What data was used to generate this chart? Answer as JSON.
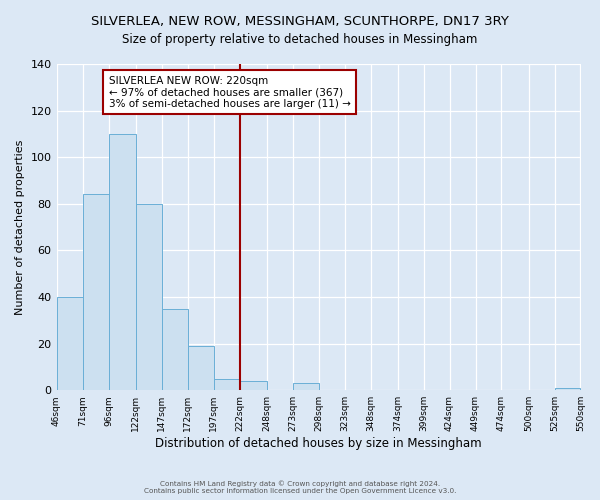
{
  "title": "SILVERLEA, NEW ROW, MESSINGHAM, SCUNTHORPE, DN17 3RY",
  "subtitle": "Size of property relative to detached houses in Messingham",
  "xlabel": "Distribution of detached houses by size in Messingham",
  "ylabel": "Number of detached properties",
  "bin_edges": [
    46,
    71,
    96,
    122,
    147,
    172,
    197,
    222,
    248,
    273,
    298,
    323,
    348,
    374,
    399,
    424,
    449,
    474,
    500,
    525,
    550
  ],
  "bin_labels": [
    "46sqm",
    "71sqm",
    "96sqm",
    "122sqm",
    "147sqm",
    "172sqm",
    "197sqm",
    "222sqm",
    "248sqm",
    "273sqm",
    "298sqm",
    "323sqm",
    "348sqm",
    "374sqm",
    "399sqm",
    "424sqm",
    "449sqm",
    "474sqm",
    "500sqm",
    "525sqm",
    "550sqm"
  ],
  "counts": [
    40,
    84,
    110,
    80,
    35,
    19,
    5,
    4,
    0,
    3,
    0,
    0,
    0,
    0,
    0,
    0,
    0,
    0,
    0,
    1
  ],
  "bar_facecolor": "#cce0f0",
  "bar_edgecolor": "#6aafd6",
  "vline_x": 222,
  "vline_color": "#9b0000",
  "annotation_title": "SILVERLEA NEW ROW: 220sqm",
  "annotation_line1": "← 97% of detached houses are smaller (367)",
  "annotation_line2": "3% of semi-detached houses are larger (11) →",
  "annotation_box_edgecolor": "#9b0000",
  "annotation_box_facecolor": "#ffffff",
  "ylim": [
    0,
    140
  ],
  "yticks": [
    0,
    20,
    40,
    60,
    80,
    100,
    120,
    140
  ],
  "background_color": "#dce8f5",
  "grid_color": "#ffffff",
  "footer1": "Contains HM Land Registry data © Crown copyright and database right 2024.",
  "footer2": "Contains public sector information licensed under the Open Government Licence v3.0.",
  "title_fontsize": 9.5,
  "subtitle_fontsize": 8.5
}
